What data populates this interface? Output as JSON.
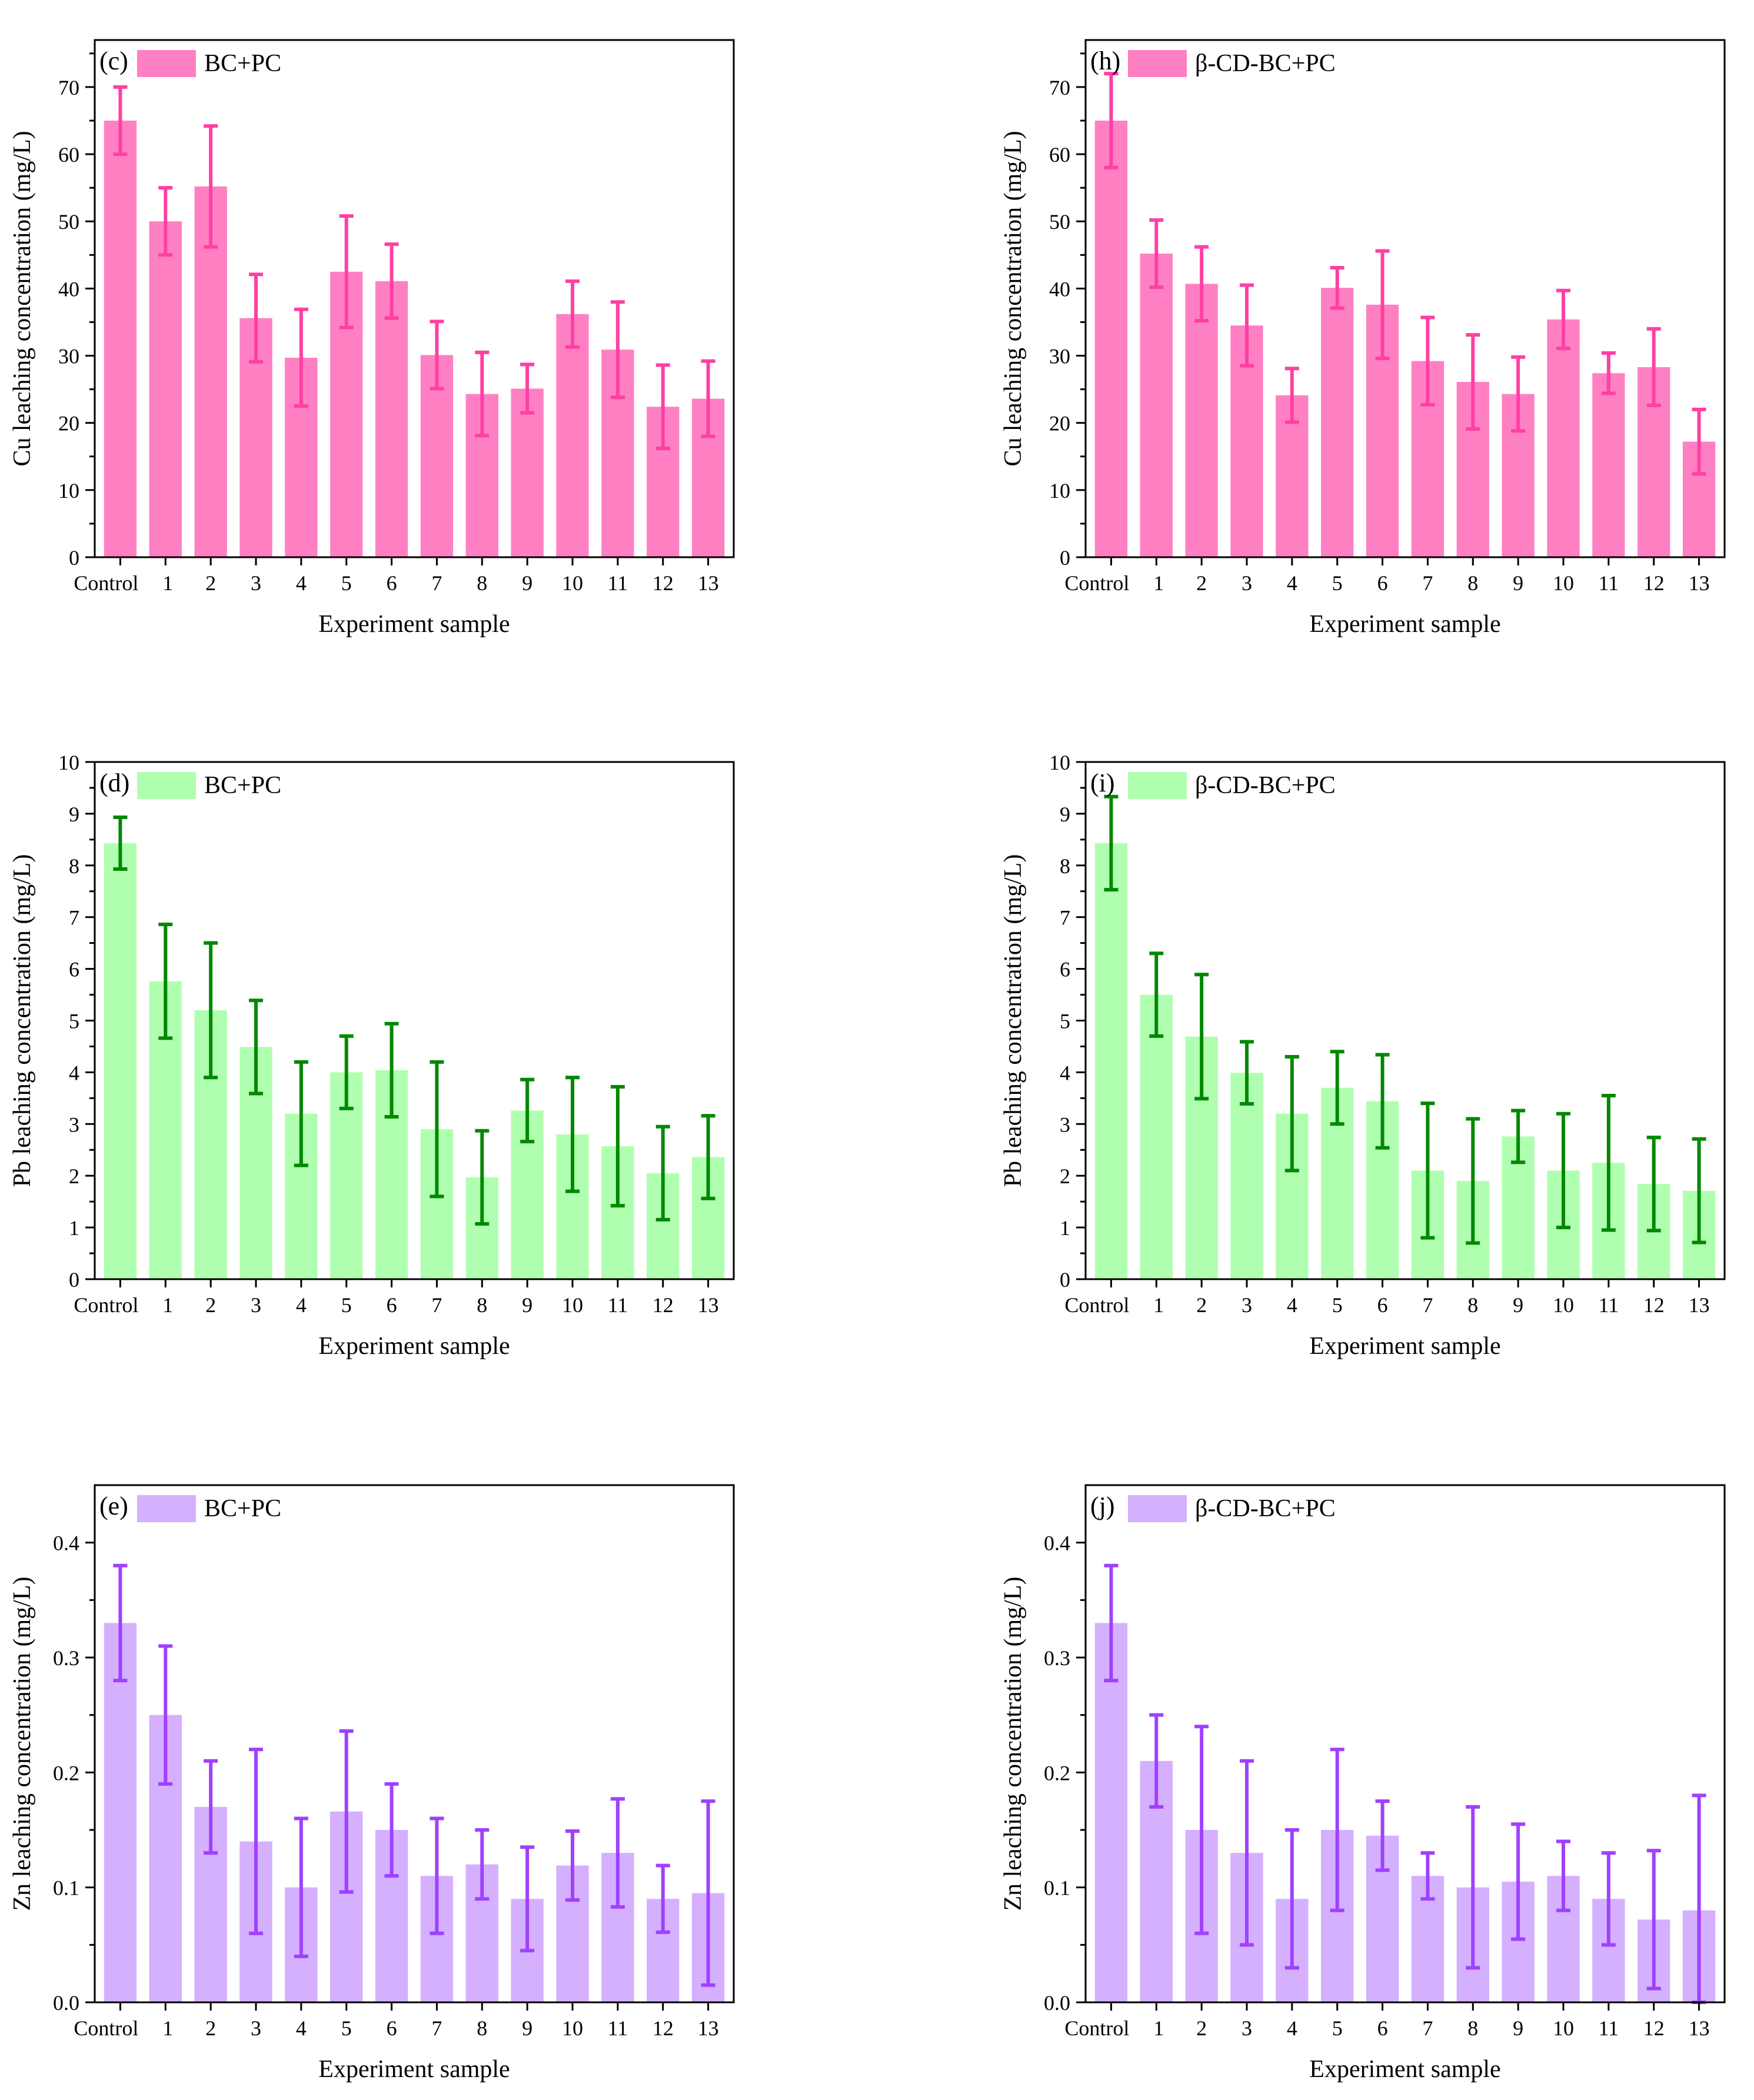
{
  "colors": {
    "cu_fill": "#ff80c2",
    "cu_err": "#ff3fa3",
    "pb_fill": "#b0ffb0",
    "pb_err": "#008800",
    "zn_fill": "#d4b0ff",
    "zn_err": "#a040ff"
  },
  "chart_data": [
    {
      "type": "bar",
      "panel": "(c)",
      "legend": "BC+PC",
      "xlabel": "Experiment sample",
      "ylabel": "Cu leaching concentration (mg/L)",
      "categories": [
        "Control",
        "1",
        "2",
        "3",
        "4",
        "5",
        "6",
        "7",
        "8",
        "9",
        "10",
        "11",
        "12",
        "13"
      ],
      "values": [
        65,
        50,
        55.2,
        35.6,
        29.7,
        42.5,
        41.1,
        30.1,
        24.3,
        25.1,
        36.2,
        30.9,
        22.4,
        23.6
      ],
      "errors": [
        5,
        5,
        9,
        6.5,
        7.2,
        8.3,
        5.5,
        5,
        6.2,
        3.6,
        4.9,
        7.1,
        6.2,
        5.6
      ],
      "ylim": [
        0,
        77
      ],
      "yticks": [
        0,
        10,
        20,
        30,
        40,
        50,
        60,
        70
      ],
      "ytick_labels": [
        "0",
        "10",
        "20",
        "30",
        "40",
        "50",
        "60",
        "70"
      ],
      "fill": "#ff80c2",
      "err_color": "#ff3fa3"
    },
    {
      "type": "bar",
      "panel": "(h)",
      "legend": "β-CD-BC+PC",
      "xlabel": "Experiment sample",
      "ylabel": "Cu leaching concentration (mg/L)",
      "categories": [
        "Control",
        "1",
        "2",
        "3",
        "4",
        "5",
        "6",
        "7",
        "8",
        "9",
        "10",
        "11",
        "12",
        "13"
      ],
      "values": [
        65,
        45.2,
        40.7,
        34.5,
        24.1,
        40.1,
        37.6,
        29.2,
        26.1,
        24.3,
        35.4,
        27.4,
        28.3,
        17.2
      ],
      "errors": [
        7,
        5,
        5.5,
        6,
        4,
        3,
        8,
        6.5,
        7,
        5.5,
        4.3,
        3,
        5.7,
        4.8
      ],
      "ylim": [
        0,
        77
      ],
      "yticks": [
        0,
        10,
        20,
        30,
        40,
        50,
        60,
        70
      ],
      "ytick_labels": [
        "0",
        "10",
        "20",
        "30",
        "40",
        "50",
        "60",
        "70"
      ],
      "fill": "#ff80c2",
      "err_color": "#ff3fa3"
    },
    {
      "type": "bar",
      "panel": "(d)",
      "legend": "BC+PC",
      "xlabel": "Experiment sample",
      "ylabel": "Pb leaching concentration (mg/L)",
      "categories": [
        "Control",
        "1",
        "2",
        "3",
        "4",
        "5",
        "6",
        "7",
        "8",
        "9",
        "10",
        "11",
        "12",
        "13"
      ],
      "values": [
        8.43,
        5.76,
        5.2,
        4.49,
        3.2,
        4,
        4.04,
        2.9,
        1.97,
        3.26,
        2.8,
        2.57,
        2.05,
        2.36
      ],
      "errors": [
        0.5,
        1.1,
        1.3,
        0.9,
        1,
        0.7,
        0.9,
        1.3,
        0.9,
        0.6,
        1.1,
        1.15,
        0.9,
        0.8
      ],
      "ylim": [
        0,
        10
      ],
      "yticks": [
        0,
        1,
        2,
        3,
        4,
        5,
        6,
        7,
        8,
        9,
        10
      ],
      "ytick_labels": [
        "0",
        "1",
        "2",
        "3",
        "4",
        "5",
        "6",
        "7",
        "8",
        "9",
        "10"
      ],
      "fill": "#b0ffb0",
      "err_color": "#008800"
    },
    {
      "type": "bar",
      "panel": "(i)",
      "legend": "β-CD-BC+PC",
      "xlabel": "Experiment sample",
      "ylabel": "Pb leaching concentration (mg/L)",
      "categories": [
        "Control",
        "1",
        "2",
        "3",
        "4",
        "5",
        "6",
        "7",
        "8",
        "9",
        "10",
        "11",
        "12",
        "13"
      ],
      "values": [
        8.43,
        5.5,
        4.69,
        3.99,
        3.2,
        3.7,
        3.44,
        2.1,
        1.9,
        2.76,
        2.1,
        2.25,
        1.84,
        1.71
      ],
      "errors": [
        0.9,
        0.8,
        1.2,
        0.6,
        1.1,
        0.7,
        0.9,
        1.3,
        1.2,
        0.5,
        1.1,
        1.3,
        0.9,
        1
      ],
      "ylim": [
        0,
        10
      ],
      "yticks": [
        0,
        1,
        2,
        3,
        4,
        5,
        6,
        7,
        8,
        9,
        10
      ],
      "ytick_labels": [
        "0",
        "1",
        "2",
        "3",
        "4",
        "5",
        "6",
        "7",
        "8",
        "9",
        "10"
      ],
      "fill": "#b0ffb0",
      "err_color": "#008800"
    },
    {
      "type": "bar",
      "panel": "(e)",
      "legend": "BC+PC",
      "xlabel": "Experiment sample",
      "ylabel": "Zn leaching concentration (mg/L)",
      "categories": [
        "Control",
        "1",
        "2",
        "3",
        "4",
        "5",
        "6",
        "7",
        "8",
        "9",
        "10",
        "11",
        "12",
        "13"
      ],
      "values": [
        0.33,
        0.25,
        0.17,
        0.14,
        0.1,
        0.166,
        0.15,
        0.11,
        0.12,
        0.09,
        0.119,
        0.13,
        0.09,
        0.095
      ],
      "errors": [
        0.05,
        0.06,
        0.04,
        0.08,
        0.06,
        0.07,
        0.04,
        0.05,
        0.03,
        0.045,
        0.03,
        0.047,
        0.029,
        0.08
      ],
      "ylim": [
        0,
        0.45
      ],
      "yticks": [
        0,
        0.1,
        0.2,
        0.3,
        0.4
      ],
      "ytick_labels": [
        "0.0",
        "0.1",
        "0.2",
        "0.3",
        "0.4"
      ],
      "fill": "#d4b0ff",
      "err_color": "#a040ff"
    },
    {
      "type": "bar",
      "panel": "(j)",
      "legend": "β-CD-BC+PC",
      "xlabel": "Experiment sample",
      "ylabel": "Zn leaching concentration (mg/L)",
      "categories": [
        "Control",
        "1",
        "2",
        "3",
        "4",
        "5",
        "6",
        "7",
        "8",
        "9",
        "10",
        "11",
        "12",
        "13"
      ],
      "values": [
        0.33,
        0.21,
        0.15,
        0.13,
        0.09,
        0.15,
        0.145,
        0.11,
        0.1,
        0.105,
        0.11,
        0.09,
        0.072,
        0.08
      ],
      "errors": [
        0.05,
        0.04,
        0.09,
        0.08,
        0.06,
        0.07,
        0.03,
        0.02,
        0.07,
        0.05,
        0.03,
        0.04,
        0.06,
        0.1
      ],
      "ylim": [
        0,
        0.45
      ],
      "yticks": [
        0,
        0.1,
        0.2,
        0.3,
        0.4
      ],
      "ytick_labels": [
        "0.0",
        "0.1",
        "0.2",
        "0.3",
        "0.4"
      ],
      "fill": "#d4b0ff",
      "err_color": "#a040ff"
    }
  ]
}
